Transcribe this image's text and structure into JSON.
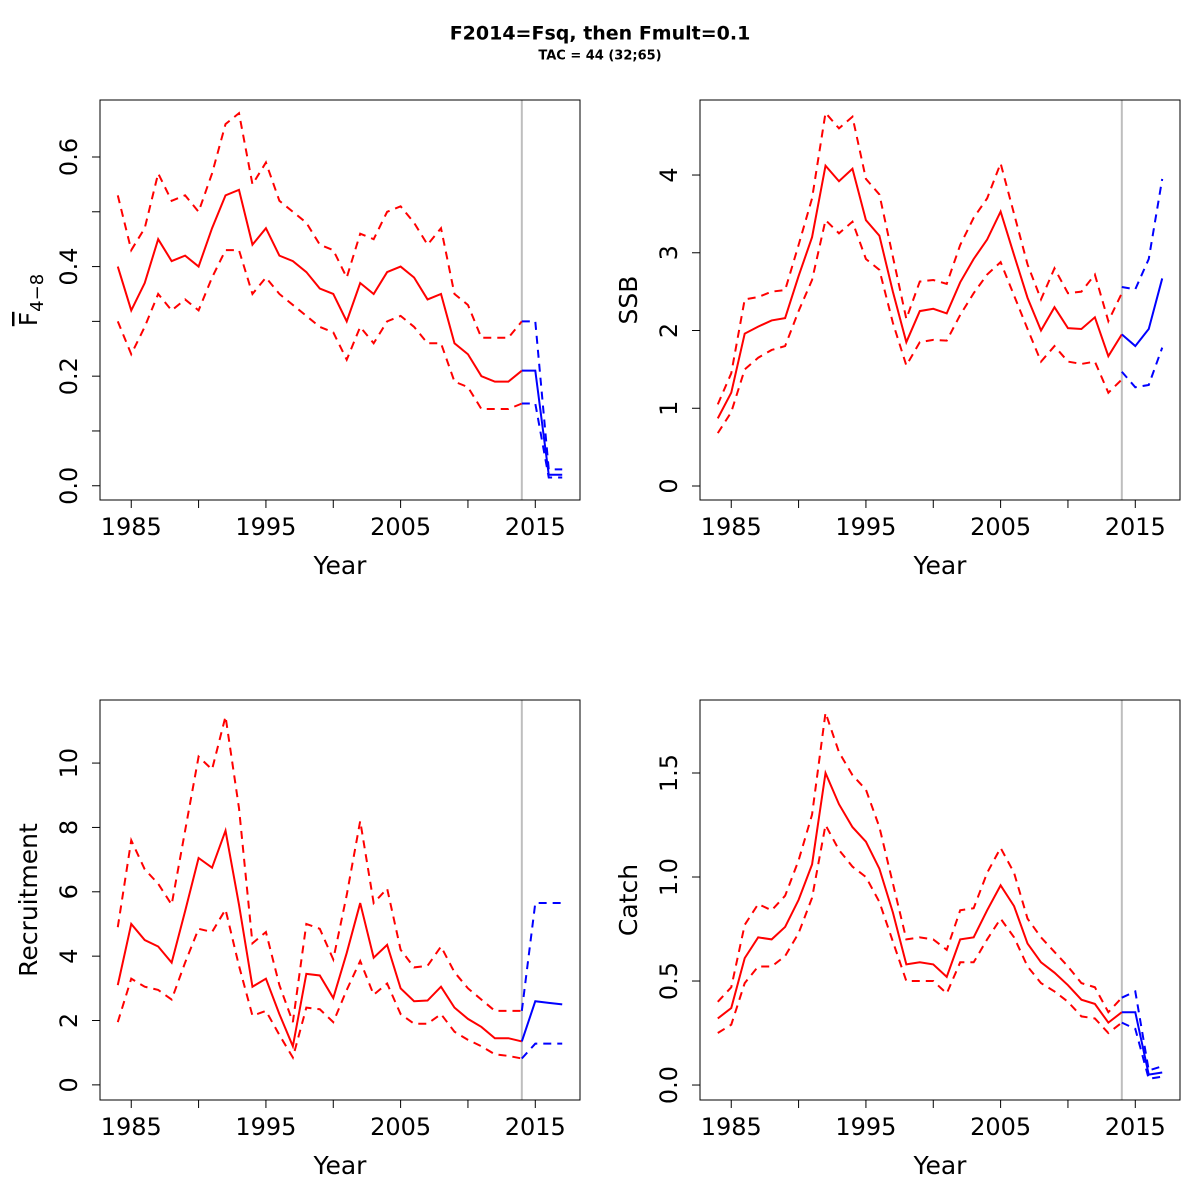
{
  "title": "F2014=Fsq, then Fmult=0.1",
  "subtitle": "TAC = 44 (32;65)",
  "chart_data": [
    {
      "type": "line",
      "ylabel": "F",
      "ylabel_sub": "4−8",
      "xlabel": "Year",
      "x": [
        1984,
        1985,
        1986,
        1987,
        1988,
        1989,
        1990,
        1991,
        1992,
        1993,
        1994,
        1995,
        1996,
        1997,
        1998,
        1999,
        2000,
        2001,
        2002,
        2003,
        2004,
        2005,
        2006,
        2007,
        2008,
        2009,
        2010,
        2011,
        2012,
        2013,
        2014
      ],
      "xlim": [
        1982.68,
        2018.32
      ],
      "xticks": [
        1985,
        1995,
        2005,
        2015
      ],
      "xminor": [
        1990,
        2000,
        2010
      ],
      "ylim": [
        -0.026,
        0.704
      ],
      "yticks": [
        {
          "value": 0,
          "label": "0.0"
        },
        0.2,
        0.4,
        0.6
      ],
      "yminor": [
        0.1,
        0.3,
        0.5
      ],
      "vline": 2014,
      "vline_color": "#bebebe",
      "series": [
        {
          "color": "#ff0000",
          "dash": false,
          "values": [
            0.4,
            0.32,
            0.37,
            0.45,
            0.41,
            0.42,
            0.4,
            0.47,
            0.53,
            0.54,
            0.44,
            0.47,
            0.42,
            0.41,
            0.39,
            0.36,
            0.35,
            0.3,
            0.37,
            0.35,
            0.39,
            0.4,
            0.38,
            0.34,
            0.35,
            0.26,
            0.24,
            0.2,
            0.19,
            0.19,
            0.21
          ]
        },
        {
          "color": "#ff0000",
          "dash": true,
          "values": [
            0.53,
            0.43,
            0.47,
            0.57,
            0.52,
            0.53,
            0.5,
            0.57,
            0.66,
            0.68,
            0.55,
            0.59,
            0.52,
            0.5,
            0.48,
            0.44,
            0.43,
            0.38,
            0.46,
            0.45,
            0.5,
            0.51,
            0.48,
            0.44,
            0.47,
            0.35,
            0.33,
            0.27,
            0.27,
            0.27,
            0.3
          ]
        },
        {
          "color": "#ff0000",
          "dash": true,
          "values": [
            0.3,
            0.24,
            0.29,
            0.35,
            0.32,
            0.34,
            0.32,
            0.38,
            0.43,
            0.43,
            0.35,
            0.38,
            0.35,
            0.33,
            0.31,
            0.29,
            0.28,
            0.23,
            0.29,
            0.26,
            0.3,
            0.31,
            0.29,
            0.26,
            0.26,
            0.19,
            0.18,
            0.14,
            0.14,
            0.14,
            0.15
          ]
        },
        {
          "color": "#0000ff",
          "dash": false,
          "x": [
            2014,
            2015,
            2016,
            2017
          ],
          "values": [
            0.21,
            0.21,
            0.02,
            0.02
          ]
        },
        {
          "color": "#0000ff",
          "dash": true,
          "x": [
            2014,
            2015,
            2016,
            2017
          ],
          "values": [
            0.3,
            0.3,
            0.03,
            0.03
          ]
        },
        {
          "color": "#0000ff",
          "dash": true,
          "x": [
            2014,
            2015,
            2016,
            2017
          ],
          "values": [
            0.15,
            0.15,
            0.015,
            0.015
          ]
        }
      ]
    },
    {
      "type": "line",
      "ylabel": "SSB",
      "xlabel": "Year",
      "x": [
        1984,
        1985,
        1986,
        1987,
        1988,
        1989,
        1990,
        1991,
        1992,
        1993,
        1994,
        1995,
        1996,
        1997,
        1998,
        1999,
        2000,
        2001,
        2002,
        2003,
        2004,
        2005,
        2006,
        2007,
        2008,
        2009,
        2010,
        2011,
        2012,
        2013,
        2014
      ],
      "xlim": [
        1982.68,
        2018.32
      ],
      "xticks": [
        1985,
        1995,
        2005,
        2015
      ],
      "xminor": [
        1990,
        2000,
        2010
      ],
      "ylim": [
        -0.18,
        4.965
      ],
      "yticks": [
        0,
        1,
        2,
        3,
        4
      ],
      "vline": 2014,
      "vline_color": "#bebebe",
      "series": [
        {
          "color": "#ff0000",
          "dash": false,
          "values": [
            0.87,
            1.2,
            1.96,
            2.05,
            2.13,
            2.16,
            2.7,
            3.2,
            4.12,
            3.92,
            4.08,
            3.42,
            3.22,
            2.5,
            1.85,
            2.25,
            2.28,
            2.22,
            2.62,
            2.92,
            3.17,
            3.53,
            2.97,
            2.42,
            2.0,
            2.3,
            2.03,
            2.02,
            2.17,
            1.67,
            1.95
          ]
        },
        {
          "color": "#ff0000",
          "dash": true,
          "values": [
            1.05,
            1.45,
            2.4,
            2.43,
            2.5,
            2.52,
            3.1,
            3.7,
            4.8,
            4.6,
            4.75,
            3.95,
            3.75,
            2.95,
            2.15,
            2.63,
            2.65,
            2.6,
            3.1,
            3.45,
            3.7,
            4.15,
            3.5,
            2.85,
            2.4,
            2.8,
            2.48,
            2.5,
            2.72,
            2.12,
            2.48
          ]
        },
        {
          "color": "#ff0000",
          "dash": true,
          "values": [
            0.68,
            0.95,
            1.5,
            1.65,
            1.75,
            1.8,
            2.25,
            2.65,
            3.42,
            3.25,
            3.4,
            2.92,
            2.78,
            2.1,
            1.55,
            1.85,
            1.88,
            1.87,
            2.2,
            2.48,
            2.72,
            2.88,
            2.45,
            2.02,
            1.6,
            1.8,
            1.6,
            1.57,
            1.6,
            1.2,
            1.37
          ]
        },
        {
          "color": "#0000ff",
          "dash": false,
          "x": [
            2014,
            2015,
            2016,
            2017
          ],
          "values": [
            1.95,
            1.8,
            2.02,
            2.67
          ]
        },
        {
          "color": "#0000ff",
          "dash": true,
          "x": [
            2014,
            2015,
            2016,
            2017
          ],
          "values": [
            2.56,
            2.53,
            2.92,
            3.95
          ]
        },
        {
          "color": "#0000ff",
          "dash": true,
          "x": [
            2014,
            2015,
            2016,
            2017
          ],
          "values": [
            1.47,
            1.27,
            1.3,
            1.78
          ]
        }
      ]
    },
    {
      "type": "line",
      "ylabel": "Recruitment",
      "xlabel": "Year",
      "x": [
        1984,
        1985,
        1986,
        1987,
        1988,
        1989,
        1990,
        1991,
        1992,
        1993,
        1994,
        1995,
        1996,
        1997,
        1998,
        1999,
        2000,
        2001,
        2002,
        2003,
        2004,
        2005,
        2006,
        2007,
        2008,
        2009,
        2010,
        2011,
        2012,
        2013,
        2014
      ],
      "xlim": [
        1982.68,
        2018.32
      ],
      "xticks": [
        1985,
        1995,
        2005,
        2015
      ],
      "xminor": [
        1990,
        2000,
        2010
      ],
      "ylim": [
        -0.47,
        11.96
      ],
      "yticks": [
        0,
        2,
        4,
        6,
        8,
        10
      ],
      "vline": 2014,
      "vline_color": "#bebebe",
      "series": [
        {
          "color": "#ff0000",
          "dash": false,
          "values": [
            3.1,
            5.0,
            4.5,
            4.3,
            3.8,
            5.4,
            7.05,
            6.75,
            7.9,
            5.6,
            3.05,
            3.3,
            2.2,
            1.2,
            3.45,
            3.4,
            2.7,
            4.1,
            5.65,
            3.95,
            4.35,
            3.0,
            2.6,
            2.62,
            3.05,
            2.4,
            2.05,
            1.8,
            1.45,
            1.45,
            1.35
          ]
        },
        {
          "color": "#ff0000",
          "dash": true,
          "values": [
            4.9,
            7.6,
            6.7,
            6.25,
            5.6,
            7.9,
            10.2,
            9.8,
            11.45,
            8.6,
            4.4,
            4.75,
            3.1,
            1.95,
            5.0,
            4.85,
            3.9,
            5.9,
            8.2,
            5.65,
            6.1,
            4.2,
            3.65,
            3.7,
            4.3,
            3.5,
            3.0,
            2.65,
            2.3,
            2.3,
            2.3
          ]
        },
        {
          "color": "#ff0000",
          "dash": true,
          "values": [
            1.95,
            3.3,
            3.05,
            2.95,
            2.65,
            3.8,
            4.85,
            4.75,
            5.45,
            3.7,
            2.15,
            2.3,
            1.55,
            0.85,
            2.4,
            2.35,
            1.95,
            2.95,
            3.85,
            2.8,
            3.15,
            2.2,
            1.9,
            1.9,
            2.2,
            1.65,
            1.4,
            1.2,
            0.95,
            0.9,
            0.82
          ]
        },
        {
          "color": "#0000ff",
          "dash": false,
          "x": [
            2014,
            2015,
            2016,
            2017
          ],
          "values": [
            1.35,
            2.6,
            2.55,
            2.5
          ]
        },
        {
          "color": "#0000ff",
          "dash": true,
          "x": [
            2014,
            2015,
            2016,
            2017
          ],
          "values": [
            2.3,
            5.65,
            5.65,
            5.65
          ]
        },
        {
          "color": "#0000ff",
          "dash": true,
          "x": [
            2014,
            2015,
            2016,
            2017
          ],
          "values": [
            0.82,
            1.28,
            1.28,
            1.28
          ]
        }
      ]
    },
    {
      "type": "line",
      "ylabel": "Catch",
      "xlabel": "Year",
      "x": [
        1984,
        1985,
        1986,
        1987,
        1988,
        1989,
        1990,
        1991,
        1992,
        1993,
        1994,
        1995,
        1996,
        1997,
        1998,
        1999,
        2000,
        2001,
        2002,
        2003,
        2004,
        2005,
        2006,
        2007,
        2008,
        2009,
        2010,
        2011,
        2012,
        2013,
        2014
      ],
      "xlim": [
        1982.68,
        2018.32
      ],
      "xticks": [
        1985,
        1995,
        2005,
        2015
      ],
      "xminor": [
        1990,
        2000,
        2010
      ],
      "ylim": [
        -0.072,
        1.851
      ],
      "yticks": [
        {
          "value": 0,
          "label": "0.0"
        },
        0.5,
        {
          "value": 1,
          "label": "1.0"
        },
        1.5
      ],
      "vline": 2014,
      "vline_color": "#bebebe",
      "series": [
        {
          "color": "#ff0000",
          "dash": false,
          "values": [
            0.32,
            0.37,
            0.61,
            0.71,
            0.7,
            0.76,
            0.89,
            1.06,
            1.5,
            1.35,
            1.24,
            1.17,
            1.04,
            0.83,
            0.58,
            0.59,
            0.58,
            0.52,
            0.7,
            0.71,
            0.84,
            0.96,
            0.86,
            0.68,
            0.59,
            0.54,
            0.48,
            0.41,
            0.39,
            0.3,
            0.35
          ]
        },
        {
          "color": "#ff0000",
          "dash": true,
          "values": [
            0.4,
            0.47,
            0.77,
            0.87,
            0.84,
            0.91,
            1.08,
            1.3,
            1.79,
            1.6,
            1.49,
            1.42,
            1.24,
            0.97,
            0.7,
            0.71,
            0.7,
            0.65,
            0.84,
            0.85,
            1.02,
            1.14,
            1.02,
            0.8,
            0.71,
            0.64,
            0.57,
            0.49,
            0.47,
            0.35,
            0.42
          ]
        },
        {
          "color": "#ff0000",
          "dash": true,
          "values": [
            0.25,
            0.29,
            0.49,
            0.57,
            0.57,
            0.62,
            0.73,
            0.9,
            1.25,
            1.13,
            1.05,
            1.0,
            0.88,
            0.69,
            0.5,
            0.5,
            0.5,
            0.44,
            0.59,
            0.59,
            0.7,
            0.8,
            0.71,
            0.57,
            0.49,
            0.45,
            0.4,
            0.33,
            0.32,
            0.25,
            0.3
          ]
        },
        {
          "color": "#0000ff",
          "dash": false,
          "x": [
            2014,
            2015,
            2016,
            2017
          ],
          "values": [
            0.35,
            0.35,
            0.05,
            0.06
          ]
        },
        {
          "color": "#0000ff",
          "dash": true,
          "x": [
            2014,
            2015,
            2016,
            2017
          ],
          "values": [
            0.42,
            0.45,
            0.07,
            0.09
          ]
        },
        {
          "color": "#0000ff",
          "dash": true,
          "x": [
            2014,
            2015,
            2016,
            2017
          ],
          "values": [
            0.3,
            0.27,
            0.03,
            0.04
          ]
        }
      ]
    }
  ]
}
